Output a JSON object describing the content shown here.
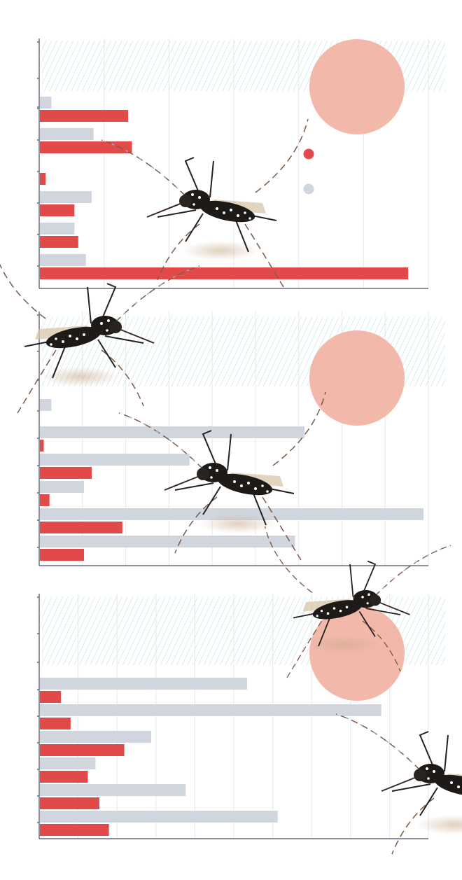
{
  "colors": {
    "primary": "#e24a4a",
    "secondary": "#d0d5de",
    "circle": "#f2b8aa",
    "hatch": "#bfe0e2",
    "axis": "#6b6b7b",
    "grid": "#e6e8ee"
  },
  "legend": {
    "items": [
      {
        "key": "primary",
        "label": ""
      },
      {
        "key": "secondary",
        "label": ""
      }
    ]
  },
  "chart_data": [
    {
      "type": "bar",
      "orientation": "horizontal",
      "xlim": [
        0,
        100
      ],
      "series": [
        {
          "key": "secondary",
          "values": [
            3,
            14,
            0,
            13.5,
            9,
            12
          ]
        },
        {
          "key": "primary",
          "values": [
            23,
            24,
            1.5,
            9,
            10,
            96
          ]
        }
      ]
    },
    {
      "type": "bar",
      "orientation": "horizontal",
      "xlim": [
        0,
        100
      ],
      "series": [
        {
          "key": "secondary",
          "values": [
            3,
            69,
            39,
            11.5,
            100,
            66.5
          ]
        },
        {
          "key": "primary",
          "values": [
            0,
            1,
            13.5,
            2.5,
            21.5,
            11.5
          ]
        }
      ]
    },
    {
      "type": "bar",
      "orientation": "horizontal",
      "xlim": [
        0,
        100
      ],
      "series": [
        {
          "key": "secondary",
          "values": [
            54,
            89,
            29,
            14.5,
            38,
            62
          ]
        },
        {
          "key": "primary",
          "values": [
            5.5,
            8,
            22,
            12.5,
            15.5,
            18
          ]
        }
      ]
    }
  ]
}
